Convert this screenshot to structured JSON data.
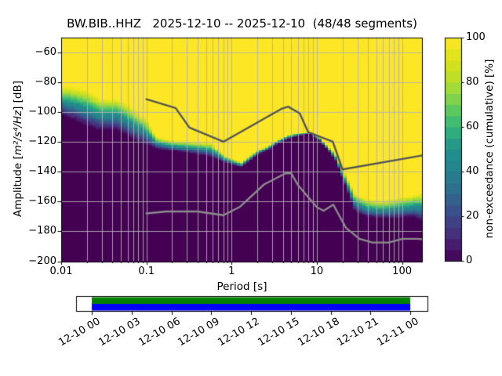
{
  "figure": {
    "title": "BW.BIB..HHZ   2025-12-10 -- 2025-12-10  (48/48 segments)",
    "xlabel": "Period [s]",
    "ylabel": {
      "prefix": "Amplitude [",
      "math": "m²/s⁴/Hz",
      "suffix": "] [dB]"
    },
    "colorbar_label": "non-exceedance (cumulative) [%]"
  },
  "chart_data": {
    "type": "heatmap",
    "title": "BW.BIB..HHZ   2025-12-10 -- 2025-12-10  (48/48 segments)",
    "xlabel": "Period [s]",
    "ylabel": "Amplitude [m^2/s^4/Hz] [dB]",
    "x_scale": "log",
    "xlim": [
      0.01,
      175
    ],
    "ylim": [
      -200,
      -50
    ],
    "grid": true,
    "grid_color": "#b0b0b0",
    "x_tick_values": [
      0.01,
      0.1,
      1,
      10,
      100
    ],
    "x_tick_labels": [
      "0.01",
      "0.1",
      "1",
      "10",
      "100"
    ],
    "y_tick_values": [
      -60,
      -80,
      -100,
      -120,
      -140,
      -160,
      -180,
      -200
    ],
    "y_tick_labels": [
      "−60",
      "−80",
      "−100",
      "−120",
      "−140",
      "−160",
      "−180",
      "−200"
    ],
    "colorbar": {
      "label": "non-exceedance (cumulative) [%]",
      "lim": [
        0,
        100
      ],
      "tick_values": [
        0,
        20,
        40,
        60,
        80,
        100
      ],
      "tick_labels": [
        "0",
        "20",
        "40",
        "60",
        "80",
        "100"
      ],
      "cmap": "viridis",
      "steps": 20
    },
    "palette_anchors": [
      {
        "t": 0.0,
        "color": "#440154"
      },
      {
        "t": 0.1,
        "color": "#482878"
      },
      {
        "t": 0.2,
        "color": "#3e4989"
      },
      {
        "t": 0.3,
        "color": "#31688e"
      },
      {
        "t": 0.4,
        "color": "#26828e"
      },
      {
        "t": 0.5,
        "color": "#21918c"
      },
      {
        "t": 0.6,
        "color": "#35b779"
      },
      {
        "t": 0.7,
        "color": "#6cce59"
      },
      {
        "t": 0.8,
        "color": "#b4de2c"
      },
      {
        "t": 0.9,
        "color": "#dce319"
      },
      {
        "t": 1.0,
        "color": "#fde725"
      }
    ],
    "distribution": {
      "description": "cumulative non-exceedance band per period: dB of 100% boundary and 0% boundary",
      "periods": [
        0.01,
        0.014,
        0.02,
        0.029,
        0.044,
        0.058,
        0.078,
        0.1,
        0.13,
        0.19,
        0.3,
        0.56,
        0.85,
        1.3,
        2.0,
        2.7,
        3.4,
        4.7,
        6.4,
        8.3,
        10.8,
        13.4,
        16.7,
        20.6,
        28,
        39,
        59,
        90,
        138,
        175
      ],
      "db_at_100pct": [
        -82,
        -83,
        -84.5,
        -90,
        -90,
        -93.5,
        -99,
        -104,
        -116,
        -118.5,
        -119,
        -120,
        -129,
        -133,
        -125.5,
        -122,
        -118.5,
        -115,
        -113.5,
        -112.5,
        -116.5,
        -122,
        -128,
        -138.5,
        -154,
        -158,
        -159,
        -157,
        -155,
        -153
      ],
      "db_at_0pct": [
        -101.5,
        -104.5,
        -109,
        -112,
        -111.5,
        -115,
        -120,
        -121.5,
        -124,
        -125.5,
        -127,
        -129.5,
        -133.5,
        -136.5,
        -128.5,
        -125,
        -121,
        -117.5,
        -115.5,
        -114.5,
        -119,
        -125,
        -132.5,
        -146,
        -166,
        -170,
        -171,
        -171,
        -170,
        -173
      ]
    },
    "noise_models": [
      {
        "name": "NHNM",
        "color": "#555555",
        "periods": [
          0.1,
          0.22,
          0.32,
          0.8,
          3.8,
          4.6,
          6.3,
          7.9,
          15.4,
          20.0,
          175
        ],
        "db": [
          -91.5,
          -97.4,
          -110.5,
          -120.0,
          -98.1,
          -96.5,
          -101.0,
          -113.5,
          -120.0,
          -138.5,
          -129.1
        ]
      },
      {
        "name": "NLNM",
        "color": "#8c8c8c",
        "periods": [
          0.1,
          0.17,
          0.4,
          0.8,
          1.24,
          2.4,
          4.3,
          5.0,
          6.0,
          10.0,
          12.0,
          15.6,
          21.9,
          31.6,
          45.0,
          70.0,
          101.0,
          154.0,
          175
        ],
        "db": [
          -168.0,
          -166.7,
          -166.7,
          -169.2,
          -163.7,
          -148.6,
          -141.1,
          -141.1,
          -149.0,
          -163.8,
          -166.2,
          -162.1,
          -177.5,
          -185.0,
          -187.5,
          -187.5,
          -185.0,
          -185.0,
          -185.4
        ]
      }
    ]
  },
  "timeline": {
    "tick_labels": [
      "12-10 00",
      "12-10 03",
      "12-10 06",
      "12-10 09",
      "12-10 12",
      "12-10 15",
      "12-10 18",
      "12-10 21",
      "12-11 00"
    ],
    "coverage": {
      "top_bar_color": "#008000",
      "bottom_bar_color": "#0000ff",
      "start_frac": 0.0,
      "end_frac": 1.0
    }
  }
}
